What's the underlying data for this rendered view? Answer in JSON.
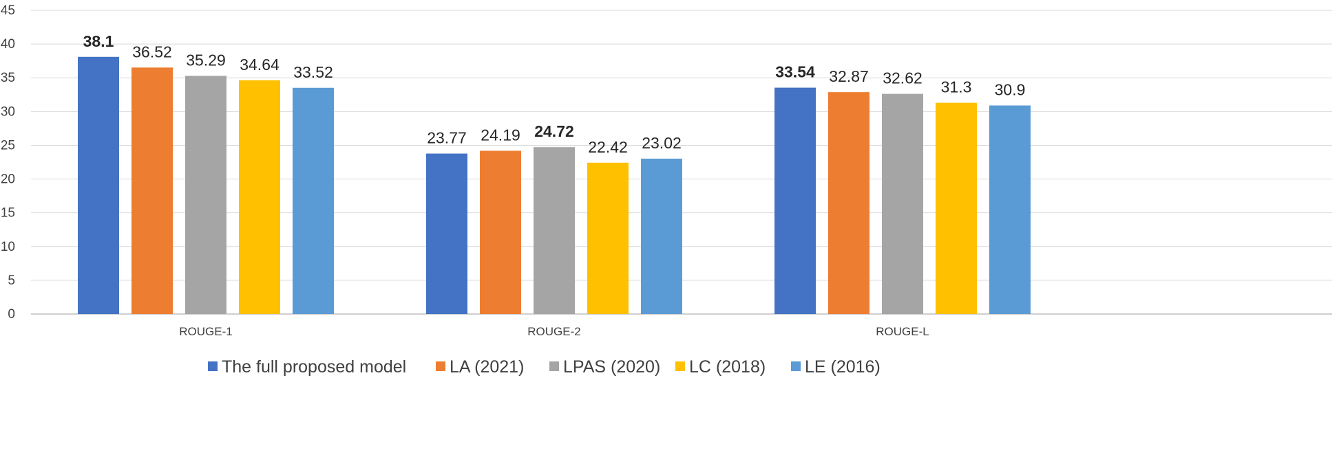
{
  "chart_data": {
    "type": "bar",
    "title": "",
    "xlabel": "",
    "ylabel": "",
    "ylim": [
      0,
      45
    ],
    "yticks": [
      "0",
      "5",
      "10",
      "15",
      "20",
      "25",
      "30",
      "35",
      "40",
      "45"
    ],
    "grid": true,
    "legend_position": "bottom",
    "categories": [
      "ROUGE-1",
      "ROUGE-2",
      "ROUGE-L"
    ],
    "series": [
      {
        "name": "The full proposed model",
        "color": "#4472C4",
        "values": [
          38.1,
          23.77,
          33.54
        ],
        "labels": [
          "38.1",
          "23.77",
          "33.54"
        ]
      },
      {
        "name": "LA (2021)",
        "color": "#ED7D31",
        "values": [
          36.52,
          24.19,
          32.87
        ],
        "labels": [
          "36.52",
          "24.19",
          "32.87"
        ]
      },
      {
        "name": "LPAS (2020)",
        "color": "#A5A5A5",
        "values": [
          35.29,
          24.72,
          32.62
        ],
        "labels": [
          "35.29",
          "24.72",
          "32.62"
        ]
      },
      {
        "name": "LC (2018)",
        "color": "#FFC000",
        "values": [
          34.64,
          22.42,
          31.3
        ],
        "labels": [
          "34.64",
          "22.42",
          "31.3"
        ]
      },
      {
        "name": "LE (2016)",
        "color": "#5B9BD5",
        "values": [
          33.52,
          23.02,
          30.9
        ],
        "labels": [
          "33.52",
          "23.02",
          "30.9"
        ]
      }
    ],
    "bold_labels": [
      "38.1",
      "24.72",
      "33.54"
    ],
    "colors": {
      "grid": "#D9D9D9",
      "axis": "#BFBFBF",
      "text": "#404040",
      "label": "#262626"
    }
  }
}
